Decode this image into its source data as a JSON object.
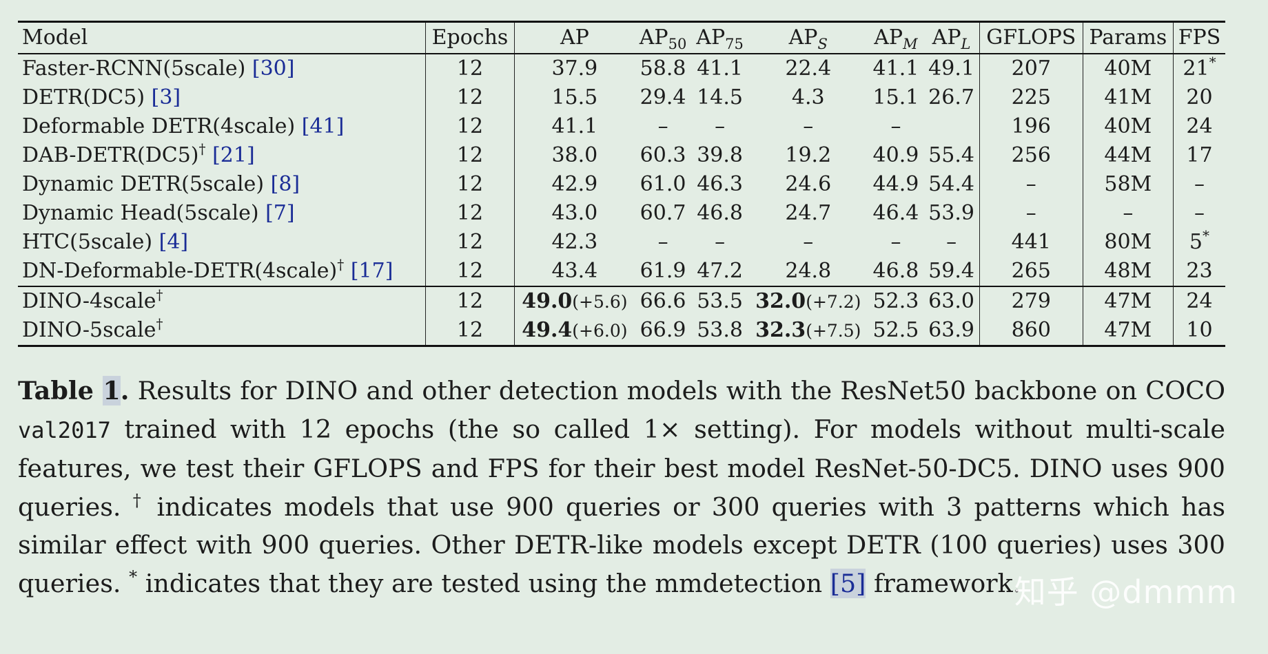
{
  "table": {
    "headers": {
      "model": "Model",
      "epochs": "Epochs",
      "ap": "AP",
      "ap50": {
        "base": "AP",
        "sub": "50"
      },
      "ap75": {
        "base": "AP",
        "sub": "75"
      },
      "aps": {
        "base": "AP",
        "sub": "S"
      },
      "apm": {
        "base": "AP",
        "sub": "M"
      },
      "apl": {
        "base": "AP",
        "sub": "L"
      },
      "gflops": "GFLOPS",
      "params": "Params",
      "fps": "FPS"
    },
    "rows": [
      {
        "model": "Faster-RCNN(5scale)",
        "dagger": "",
        "ref": "[30]",
        "epochs": "12",
        "ap": "37.9",
        "ap50": "58.8",
        "ap75": "41.1",
        "aps": "22.4",
        "apm": "41.1",
        "apl": "49.1",
        "gflops": "207",
        "params": "40M",
        "fps": "21",
        "fps_mark": "*"
      },
      {
        "model": "DETR(DC5)",
        "dagger": "",
        "ref": "[3]",
        "epochs": "12",
        "ap": "15.5",
        "ap50": "29.4",
        "ap75": "14.5",
        "aps": "4.3",
        "apm": "15.1",
        "apl": "26.7",
        "gflops": "225",
        "params": "41M",
        "fps": "20",
        "fps_mark": ""
      },
      {
        "model": "Deformable DETR(4scale)",
        "dagger": "",
        "ref": "[41]",
        "epochs": "12",
        "ap": "41.1",
        "ap50": "–",
        "ap75": "–",
        "aps": "–",
        "apm": "–",
        "apl": "",
        "gflops": "196",
        "params": "40M",
        "fps": "24",
        "fps_mark": ""
      },
      {
        "model": "DAB-DETR(DC5)",
        "dagger": "†",
        "ref": "[21]",
        "epochs": "12",
        "ap": "38.0",
        "ap50": "60.3",
        "ap75": "39.8",
        "aps": "19.2",
        "apm": "40.9",
        "apl": "55.4",
        "gflops": "256",
        "params": "44M",
        "fps": "17",
        "fps_mark": ""
      },
      {
        "model": "Dynamic DETR(5scale)",
        "dagger": "",
        "ref": "[8]",
        "epochs": "12",
        "ap": "42.9",
        "ap50": "61.0",
        "ap75": "46.3",
        "aps": "24.6",
        "apm": "44.9",
        "apl": "54.4",
        "gflops": "–",
        "params": "58M",
        "fps": "–",
        "fps_mark": ""
      },
      {
        "model": "Dynamic Head(5scale)",
        "dagger": "",
        "ref": "[7]",
        "epochs": "12",
        "ap": "43.0",
        "ap50": "60.7",
        "ap75": "46.8",
        "aps": "24.7",
        "apm": "46.4",
        "apl": "53.9",
        "gflops": "–",
        "params": "–",
        "fps": "–",
        "fps_mark": ""
      },
      {
        "model": "HTC(5scale)",
        "dagger": "",
        "ref": "[4]",
        "epochs": "12",
        "ap": "42.3",
        "ap50": "–",
        "ap75": "–",
        "aps": "–",
        "apm": "–",
        "apl": "–",
        "gflops": "441",
        "params": "80M",
        "fps": "5",
        "fps_mark": "*"
      },
      {
        "model": "DN-Deformable-DETR(4scale)",
        "dagger": "†",
        "ref": "[17]",
        "epochs": "12",
        "ap": "43.4",
        "ap50": "61.9",
        "ap75": "47.2",
        "aps": "24.8",
        "apm": "46.8",
        "apl": "59.4",
        "gflops": "265",
        "params": "48M",
        "fps": "23",
        "fps_mark": ""
      }
    ],
    "dino_rows": [
      {
        "model": "DINO-4scale",
        "dagger": "†",
        "epochs": "12",
        "ap": "49.0",
        "ap_delta": "(+5.6)",
        "ap50": "66.6",
        "ap75": "53.5",
        "aps": "32.0",
        "aps_delta": "(+7.2)",
        "apm": "52.3",
        "apl": "63.0",
        "gflops": "279",
        "params": "47M",
        "fps": "24"
      },
      {
        "model": "DINO-5scale",
        "dagger": "†",
        "epochs": "12",
        "ap": "49.4",
        "ap_delta": "(+6.0)",
        "ap50": "66.9",
        "ap75": "53.8",
        "aps": "32.3",
        "aps_delta": "(+7.5)",
        "apm": "52.5",
        "apl": "63.9",
        "gflops": "860",
        "params": "47M",
        "fps": "10"
      }
    ]
  },
  "caption": {
    "label": "Table",
    "number": "1",
    "label_period": ".",
    "part1": " Results for DINO and other detection models with the ResNet50 backbone on COCO ",
    "code": "val2017",
    "part2": " trained with 12 epochs (the so called 1× setting). For models without multi-scale features, we test their GFLOPS and FPS for their best model ResNet-50-DC5. DINO uses 900 queries. ",
    "dagger": "†",
    "part3": " indicates models that use 900 queries or 300 queries with 3 patterns which has similar effect with 900 queries. Other DETR-like models except DETR (100 queries) uses 300 queries. ",
    "star": "*",
    "part4": " indicates that they are tested using the mmdetection ",
    "ref": "[5]",
    "part5": " framework."
  },
  "watermark": "知乎 @dmmm"
}
